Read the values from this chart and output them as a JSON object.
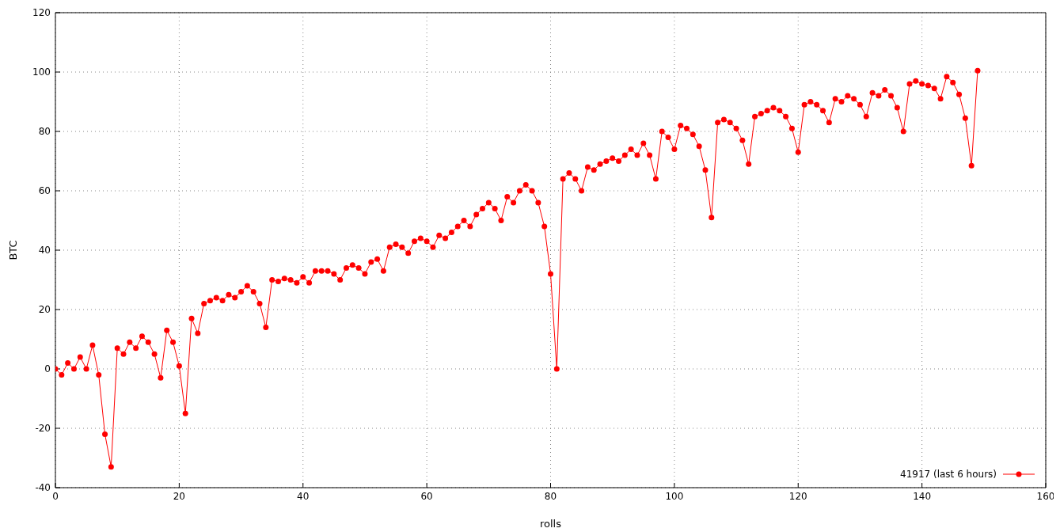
{
  "chart_data": {
    "type": "line",
    "xlabel": "rolls",
    "ylabel": "BTC",
    "x": [
      0,
      1,
      2,
      3,
      4,
      5,
      6,
      7,
      8,
      9,
      10,
      11,
      12,
      13,
      14,
      15,
      16,
      17,
      18,
      19,
      20,
      21,
      22,
      23,
      24,
      25,
      26,
      27,
      28,
      29,
      30,
      31,
      32,
      33,
      34,
      35,
      36,
      37,
      38,
      39,
      40,
      41,
      42,
      43,
      44,
      45,
      46,
      47,
      48,
      49,
      50,
      51,
      52,
      53,
      54,
      55,
      56,
      57,
      58,
      59,
      60,
      61,
      62,
      63,
      64,
      65,
      66,
      67,
      68,
      69,
      70,
      71,
      72,
      73,
      74,
      75,
      76,
      77,
      78,
      79,
      80,
      81,
      82,
      83,
      84,
      85,
      86,
      87,
      88,
      89,
      90,
      91,
      92,
      93,
      94,
      95,
      96,
      97,
      98,
      99,
      100,
      101,
      102,
      103,
      104,
      105,
      106,
      107,
      108,
      109,
      110,
      111,
      112,
      113,
      114,
      115,
      116,
      117,
      118,
      119,
      120,
      121,
      122,
      123,
      124,
      125,
      126,
      127,
      128,
      129,
      130,
      131,
      132,
      133,
      134,
      135,
      136,
      137,
      138,
      139,
      140,
      141,
      142,
      143,
      144,
      145,
      146,
      147,
      148,
      149
    ],
    "series": [
      {
        "name": "41917 (last 6 hours)",
        "color": "#ff0000",
        "values": [
          0,
          -2,
          2,
          0,
          4,
          0,
          8,
          -2,
          -22,
          -33,
          7,
          5,
          9,
          7,
          11,
          9,
          5,
          -3,
          13,
          9,
          1,
          -15,
          17,
          12,
          22,
          23,
          24,
          23,
          25,
          24,
          26,
          28,
          26,
          22,
          14,
          30,
          29.5,
          30.5,
          30,
          29,
          31,
          29,
          33,
          33,
          33,
          32,
          30,
          34,
          35,
          34,
          32,
          36,
          37,
          33,
          41,
          42,
          41,
          39,
          43,
          44,
          43,
          41,
          45,
          44,
          46,
          48,
          50,
          48,
          52,
          54,
          56,
          54,
          50,
          58,
          56,
          60,
          62,
          60,
          56,
          48,
          32,
          0,
          64,
          66,
          64,
          60,
          68,
          67,
          69,
          70,
          71,
          70,
          72,
          74,
          72,
          76,
          72,
          64,
          80,
          78,
          74,
          82,
          81,
          79,
          75,
          67,
          51,
          83,
          84,
          83,
          81,
          77,
          69,
          85,
          86,
          87,
          88,
          87,
          85,
          81,
          73,
          89,
          90,
          89,
          87,
          83,
          91,
          90,
          92,
          91,
          89,
          85,
          93,
          92,
          94,
          92,
          88,
          80,
          96,
          97,
          96,
          95.5,
          94.5,
          91,
          98.5,
          96.5,
          92.5,
          84.5,
          68.5,
          100.5
        ]
      }
    ],
    "xlim": [
      0,
      160
    ],
    "xticks": [
      0,
      20,
      40,
      60,
      80,
      100,
      120,
      140,
      160
    ],
    "ylim": [
      -40,
      120
    ],
    "yticks": [
      -40,
      -20,
      0,
      20,
      40,
      60,
      80,
      100,
      120
    ],
    "grid": true,
    "legend": "bottom right",
    "marker": "circle",
    "line_style": "solid"
  }
}
